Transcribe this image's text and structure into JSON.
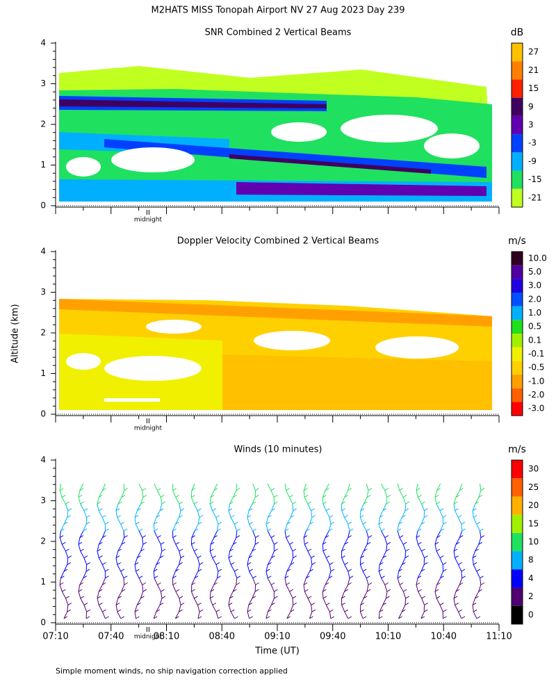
{
  "title": "M2HATS MISS Tonopah Airport NV  27 Aug 2023 Day 239",
  "ylabel": "Altitude (km)",
  "xlabel": "Time (UT)",
  "footnote": "Simple moment winds, no ship navigation correction applied",
  "chart_data": [
    {
      "type": "heatmap",
      "title": "SNR Combined 2 Vertical Beams",
      "ylim": [
        0,
        4
      ],
      "yticks": [
        0,
        1,
        2,
        3,
        4
      ],
      "xlim": [
        430,
        670
      ],
      "xticks": [
        430,
        460,
        490,
        520,
        550,
        580,
        610,
        640,
        670
      ],
      "annotations": [
        {
          "text": "midnight",
          "x": 480
        }
      ],
      "colorbar": {
        "unit": "dB",
        "levels": [
          27,
          21,
          15,
          9,
          3,
          -3,
          -9,
          -15,
          -21
        ],
        "colors": [
          "#ffc000",
          "#ff8000",
          "#ff2000",
          "#400060",
          "#6000b0",
          "#0040ff",
          "#00b0ff",
          "#20e060",
          "#c0ff20"
        ]
      }
    },
    {
      "type": "heatmap",
      "title": "Doppler Velocity Combined 2 Vertical Beams",
      "ylim": [
        0,
        4
      ],
      "yticks": [
        0,
        1,
        2,
        3,
        4
      ],
      "xlim": [
        430,
        670
      ],
      "xticks": [
        430,
        460,
        490,
        520,
        550,
        580,
        610,
        640,
        670
      ],
      "annotations": [
        {
          "text": "midnight",
          "x": 480
        }
      ],
      "colorbar": {
        "unit": "m/s",
        "levels": [
          {
            "value": 10,
            "label": "10.0"
          },
          {
            "value": 5,
            "label": "5.0"
          },
          {
            "value": 3,
            "label": "3.0"
          },
          {
            "value": 2,
            "label": "2.0"
          },
          {
            "value": 1,
            "label": "1.0"
          },
          0.5,
          0.1,
          -0.1,
          -0.5,
          {
            "value": -1,
            "label": "-1.0"
          },
          {
            "value": -2,
            "label": "-2.0"
          },
          {
            "value": -3,
            "label": "-3.0"
          }
        ],
        "colors": [
          "#300020",
          "#5000a0",
          "#2000e0",
          "#0050ff",
          "#00b0ff",
          "#20e020",
          "#a0f000",
          "#f0f000",
          "#ffd000",
          "#ffa000",
          "#ff6000",
          "#ff0000"
        ]
      }
    },
    {
      "type": "barbs",
      "title": "Winds (10 minutes)",
      "ylim": [
        0,
        4
      ],
      "yticks": [
        0,
        1,
        2,
        3,
        4
      ],
      "xlim": [
        430,
        670
      ],
      "xticks": [
        {
          "value": 430,
          "label": "07:10"
        },
        {
          "value": 460,
          "label": "07:40"
        },
        {
          "value": 490,
          "label": "08:10"
        },
        {
          "value": 520,
          "label": "08:40"
        },
        {
          "value": 550,
          "label": "09:10"
        },
        {
          "value": 580,
          "label": "09:40"
        },
        {
          "value": 610,
          "label": "10:10"
        },
        {
          "value": 640,
          "label": "10:40"
        },
        {
          "value": 670,
          "label": "11:10"
        }
      ],
      "annotations": [
        {
          "text": "midnight",
          "x": 480
        }
      ],
      "colorbar": {
        "unit": "m/s",
        "levels": [
          30,
          25,
          20,
          15,
          10,
          8,
          4,
          2,
          0
        ],
        "colors": [
          "#ff0000",
          "#ff6000",
          "#ffb000",
          "#a0f000",
          "#20e060",
          "#00b0ff",
          "#0000ff",
          "#500070",
          "#000000"
        ]
      }
    }
  ]
}
